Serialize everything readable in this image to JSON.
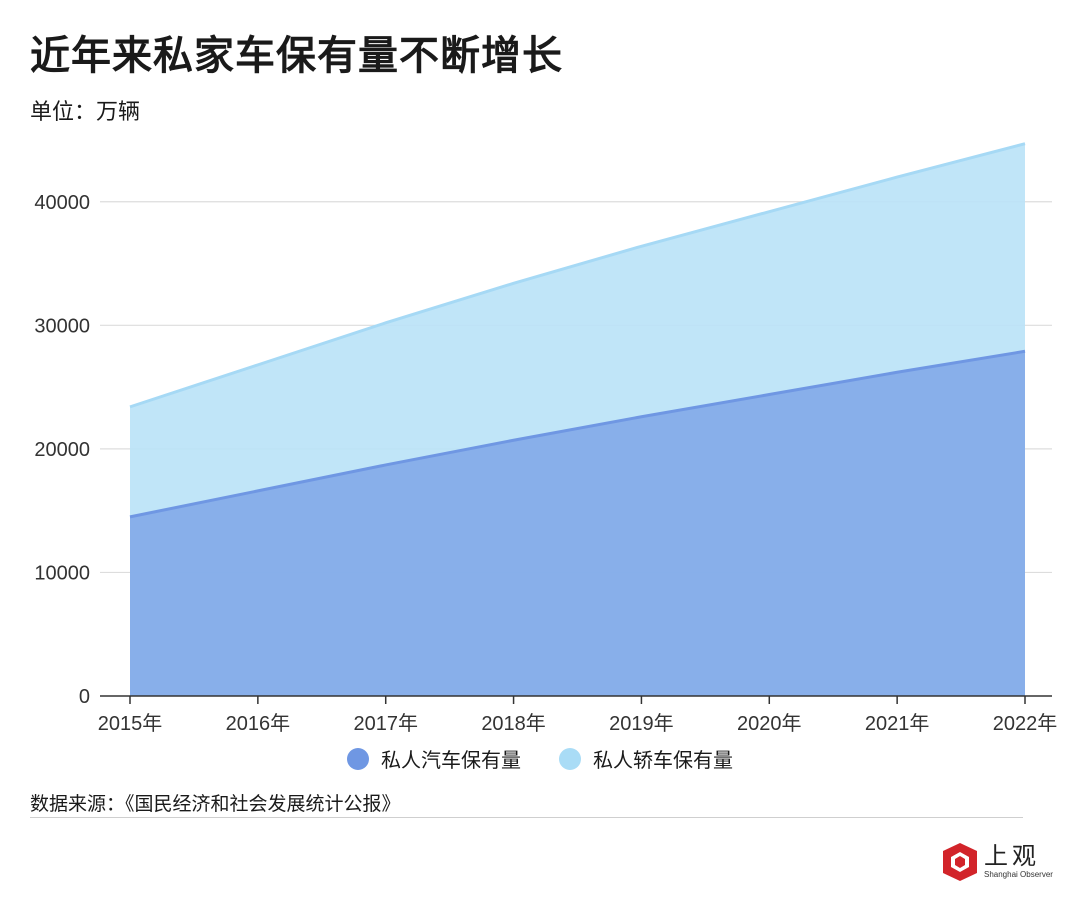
{
  "title": "近年来私家车保有量不断增长",
  "unit_label": "单位：万辆",
  "source": "数据来源：《国民经济和社会发展统计公报》",
  "logo": {
    "name": "上观",
    "sub": "Shanghai Observer"
  },
  "colors": {
    "private_car": "#7ea6e8",
    "private_sedan": "#b9e2f7",
    "private_car_line": "#6f97e3",
    "private_sedan_line": "#a6d9f5"
  },
  "chart_data": {
    "type": "area",
    "stacked": false,
    "title": "近年来私家车保有量不断增长",
    "ylabel": "单位：万辆",
    "categories": [
      "2015年",
      "2016年",
      "2017年",
      "2018年",
      "2019年",
      "2020年",
      "2021年",
      "2022年"
    ],
    "ylim": [
      0,
      45000
    ],
    "yticks": [
      0,
      10000,
      20000,
      30000,
      40000
    ],
    "grid": true,
    "legend_position": "bottom",
    "series": [
      {
        "name": "私人汽车保有量",
        "values": [
          14500,
          16600,
          18700,
          20700,
          22600,
          24400,
          26200,
          27900
        ]
      },
      {
        "name": "私人轿车保有量",
        "values": [
          23400,
          26800,
          30200,
          33400,
          36400,
          39200,
          42000,
          44700
        ]
      }
    ]
  }
}
